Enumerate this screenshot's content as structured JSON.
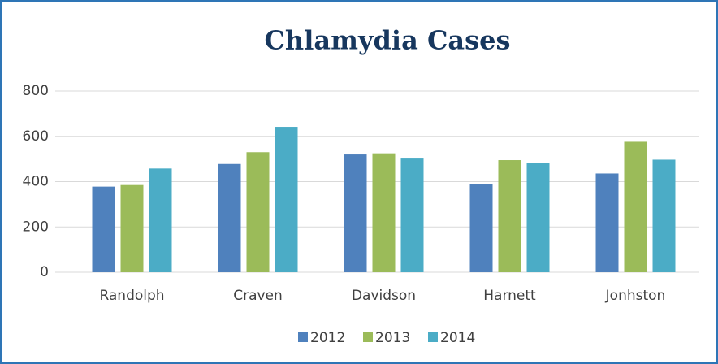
{
  "chart_data": {
    "type": "bar",
    "title": "Chlamydia Cases",
    "categories": [
      "Randolph",
      "Craven",
      "Davidson",
      "Harnett",
      "Jonhston"
    ],
    "series": [
      {
        "name": "2012",
        "color": "#4f81bd",
        "values": [
          378,
          478,
          520,
          388,
          436
        ]
      },
      {
        "name": "2013",
        "color": "#9bbb59",
        "values": [
          385,
          530,
          525,
          495,
          576
        ]
      },
      {
        "name": "2014",
        "color": "#4bacc6",
        "values": [
          458,
          642,
          502,
          482,
          497
        ]
      }
    ],
    "ylim": [
      0,
      800
    ],
    "yticks": [
      0,
      200,
      400,
      600,
      800
    ],
    "grid": true,
    "legend": "bottom"
  }
}
